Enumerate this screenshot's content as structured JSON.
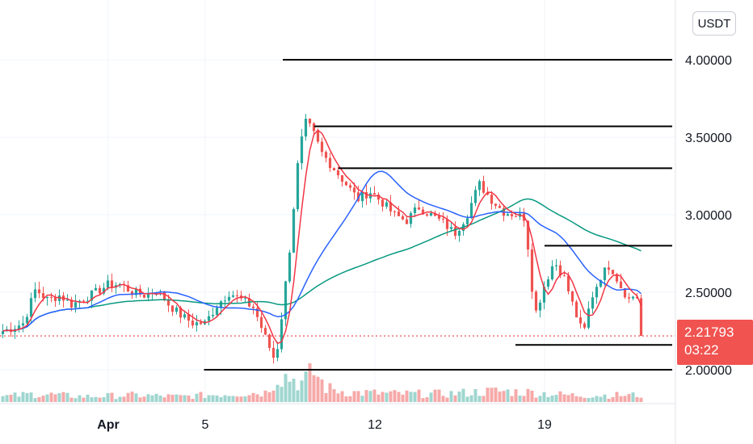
{
  "currency": "USDT",
  "last_price": "2.21793",
  "countdown": "03:22",
  "colors": {
    "up": "#26a69a",
    "down": "#ef5350",
    "up_volume": "#9fd6cf",
    "down_volume": "#f5a9a8",
    "ma_fast": "#f23645",
    "ma_mid": "#2962ff",
    "ma_slow": "#089981",
    "levels": "#000000",
    "grid": "#f0f3fa"
  },
  "chart_data": {
    "type": "candlestick",
    "y_ticks": [
      "2.00000",
      "2.50000",
      "3.00000",
      "3.50000",
      "4.00000"
    ],
    "y_tick_values": [
      2.0,
      2.5,
      3.0,
      3.5,
      4.0
    ],
    "x_ticks": [
      {
        "label": "Apr",
        "day": 0,
        "bold": true
      },
      {
        "label": "5",
        "day": 4
      },
      {
        "label": "12",
        "day": 11
      },
      {
        "label": "19",
        "day": 18
      }
    ],
    "day_range": [
      -4.35,
      22.0
    ],
    "ylim": [
      1.7,
      4.25
    ],
    "grid": true,
    "horizontal_levels": [
      {
        "price": 4.0,
        "from_day": 7.2
      },
      {
        "price": 3.57,
        "from_day": 8.5
      },
      {
        "price": 3.3,
        "from_day": 9.5
      },
      {
        "price": 2.8,
        "from_day": 18.0
      },
      {
        "price": 2.16,
        "from_day": 16.8
      },
      {
        "price": 2.0,
        "from_day": 3.95
      }
    ],
    "close_path": [
      [
        -4.3,
        2.25
      ],
      [
        -3.5,
        2.3
      ],
      [
        -3.0,
        2.52
      ],
      [
        -2.5,
        2.45
      ],
      [
        -2.0,
        2.48
      ],
      [
        -1.5,
        2.42
      ],
      [
        -1.0,
        2.46
      ],
      [
        -0.5,
        2.5
      ],
      [
        0.0,
        2.55
      ],
      [
        0.5,
        2.55
      ],
      [
        1.0,
        2.5
      ],
      [
        1.5,
        2.48
      ],
      [
        2.0,
        2.52
      ],
      [
        2.5,
        2.42
      ],
      [
        3.0,
        2.35
      ],
      [
        3.5,
        2.3
      ],
      [
        4.0,
        2.3
      ],
      [
        4.5,
        2.42
      ],
      [
        5.0,
        2.5
      ],
      [
        5.5,
        2.45
      ],
      [
        6.0,
        2.4
      ],
      [
        6.5,
        2.2
      ],
      [
        6.9,
        2.05
      ],
      [
        7.2,
        2.4
      ],
      [
        7.5,
        2.8
      ],
      [
        7.8,
        3.3
      ],
      [
        8.1,
        3.6
      ],
      [
        8.4,
        3.55
      ],
      [
        8.8,
        3.4
      ],
      [
        9.3,
        3.3
      ],
      [
        9.8,
        3.2
      ],
      [
        10.3,
        3.1
      ],
      [
        10.8,
        3.15
      ],
      [
        11.3,
        3.08
      ],
      [
        11.8,
        3.0
      ],
      [
        12.3,
        2.96
      ],
      [
        12.8,
        3.05
      ],
      [
        13.3,
        3.0
      ],
      [
        13.8,
        2.95
      ],
      [
        14.3,
        2.88
      ],
      [
        14.8,
        3.0
      ],
      [
        15.3,
        3.2
      ],
      [
        15.8,
        3.1
      ],
      [
        16.3,
        3.02
      ],
      [
        16.8,
        3.0
      ],
      [
        17.2,
        2.98
      ],
      [
        17.6,
        2.35
      ],
      [
        18.0,
        2.55
      ],
      [
        18.4,
        2.7
      ],
      [
        18.8,
        2.6
      ],
      [
        19.2,
        2.4
      ],
      [
        19.6,
        2.22
      ],
      [
        19.9,
        2.45
      ],
      [
        20.3,
        2.6
      ],
      [
        20.7,
        2.68
      ],
      [
        21.1,
        2.55
      ],
      [
        21.5,
        2.45
      ],
      [
        21.8,
        2.5
      ],
      [
        21.95,
        2.22
      ]
    ],
    "volume_profile": [
      [
        -4.3,
        0.2
      ],
      [
        -3.0,
        0.3
      ],
      [
        -1.0,
        0.2
      ],
      [
        1.0,
        0.25
      ],
      [
        3.0,
        0.2
      ],
      [
        5.0,
        0.3
      ],
      [
        6.5,
        0.35
      ],
      [
        7.0,
        1.0
      ],
      [
        7.5,
        0.9
      ],
      [
        8.0,
        0.7
      ],
      [
        8.5,
        1.1
      ],
      [
        9.0,
        0.5
      ],
      [
        10.0,
        0.35
      ],
      [
        12.0,
        0.3
      ],
      [
        14.0,
        0.3
      ],
      [
        16.0,
        0.4
      ],
      [
        17.5,
        0.35
      ],
      [
        19.0,
        0.25
      ],
      [
        21.0,
        0.25
      ],
      [
        22.0,
        0.25
      ]
    ],
    "volume_max": 0.3
  }
}
